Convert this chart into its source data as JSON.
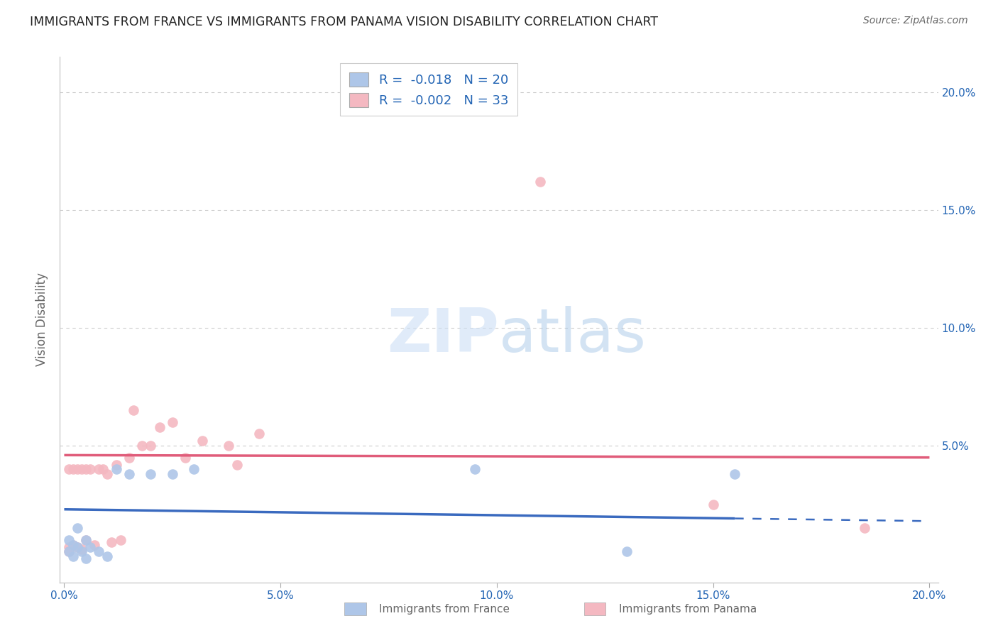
{
  "title": "IMMIGRANTS FROM FRANCE VS IMMIGRANTS FROM PANAMA VISION DISABILITY CORRELATION CHART",
  "source": "Source: ZipAtlas.com",
  "ylabel": "Vision Disability",
  "xlim": [
    0.0,
    0.2
  ],
  "ylim": [
    0.0,
    0.21
  ],
  "xticks": [
    0.0,
    0.05,
    0.1,
    0.15,
    0.2
  ],
  "yticks": [
    0.0,
    0.05,
    0.1,
    0.15,
    0.2
  ],
  "xtick_labels": [
    "0.0%",
    "5.0%",
    "10.0%",
    "15.0%",
    "20.0%"
  ],
  "ytick_labels": [
    "",
    "5.0%",
    "10.0%",
    "15.0%",
    "20.0%"
  ],
  "france_color": "#aec6e8",
  "panama_color": "#f4b8c1",
  "france_R": -0.018,
  "france_N": 20,
  "panama_R": -0.002,
  "panama_N": 33,
  "legend_R_color": "#2264b4",
  "watermark": "ZIPatlas",
  "france_line_color": "#3a6abf",
  "panama_line_color": "#e05c7a",
  "france_line_y_start": 0.023,
  "france_line_y_end": 0.018,
  "france_line_x_solid_end": 0.155,
  "panama_line_y_start": 0.046,
  "panama_line_y_end": 0.045,
  "france_scatter_x": [
    0.001,
    0.001,
    0.002,
    0.002,
    0.003,
    0.003,
    0.004,
    0.005,
    0.005,
    0.006,
    0.008,
    0.01,
    0.012,
    0.015,
    0.02,
    0.025,
    0.03,
    0.095,
    0.155,
    0.13
  ],
  "france_scatter_y": [
    0.01,
    0.005,
    0.008,
    0.003,
    0.007,
    0.015,
    0.005,
    0.01,
    0.002,
    0.007,
    0.005,
    0.003,
    0.04,
    0.038,
    0.038,
    0.038,
    0.04,
    0.04,
    0.038,
    0.005
  ],
  "panama_scatter_x": [
    0.001,
    0.001,
    0.001,
    0.002,
    0.002,
    0.003,
    0.003,
    0.004,
    0.004,
    0.005,
    0.005,
    0.006,
    0.007,
    0.008,
    0.009,
    0.01,
    0.011,
    0.012,
    0.013,
    0.015,
    0.016,
    0.018,
    0.02,
    0.022,
    0.025,
    0.028,
    0.032,
    0.038,
    0.04,
    0.045,
    0.11,
    0.15,
    0.185
  ],
  "panama_scatter_y": [
    0.007,
    0.005,
    0.04,
    0.008,
    0.04,
    0.007,
    0.04,
    0.006,
    0.04,
    0.01,
    0.04,
    0.04,
    0.008,
    0.04,
    0.04,
    0.038,
    0.009,
    0.042,
    0.01,
    0.045,
    0.065,
    0.05,
    0.05,
    0.058,
    0.06,
    0.045,
    0.052,
    0.05,
    0.042,
    0.055,
    0.162,
    0.025,
    0.015
  ],
  "grid_color": "#cccccc",
  "background_color": "#ffffff"
}
